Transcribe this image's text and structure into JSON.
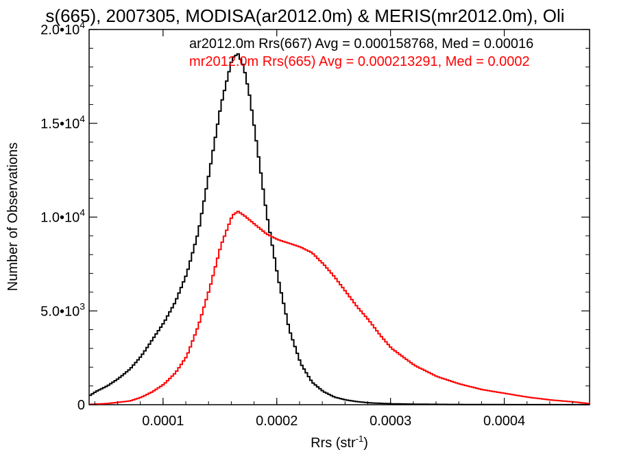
{
  "chart_data": {
    "type": "line",
    "title": "s(665), 2007305, MODISA(ar2012.0m) & MERIS(mr2012.0m), Oli",
    "xlabel": "Rrs (str",
    "xlabel_sup": "-1",
    "xlabel_end": ")",
    "ylabel": "Number of Observations",
    "xlim": [
      3.5e-05,
      0.000475
    ],
    "ylim": [
      0,
      20000
    ],
    "x_ticks": [
      {
        "value": 0.0001,
        "label": "0.0001"
      },
      {
        "value": 0.0002,
        "label": "0.0002"
      },
      {
        "value": 0.0003,
        "label": "0.0003"
      },
      {
        "value": 0.0004,
        "label": "0.0004"
      }
    ],
    "y_ticks": [
      {
        "value": 0,
        "mant": "0",
        "exp": ""
      },
      {
        "value": 5000,
        "mant": "5.0•10",
        "exp": "3"
      },
      {
        "value": 10000,
        "mant": "1.0•10",
        "exp": "4"
      },
      {
        "value": 15000,
        "mant": "1.5•10",
        "exp": "4"
      },
      {
        "value": 20000,
        "mant": "2.0•10",
        "exp": "4"
      }
    ],
    "grid": false,
    "series": [
      {
        "name": "ar2012.0m Rrs(667) Avg = 0.000158768, Med = 0.00016",
        "color": "#000000",
        "x": [
          3.5e-05,
          4e-05,
          5e-05,
          6e-05,
          7e-05,
          8e-05,
          9e-05,
          0.0001,
          0.00011,
          0.00012,
          0.00013,
          0.00014,
          0.00015,
          0.00016,
          0.000165,
          0.00017,
          0.000175,
          0.00018,
          0.00019,
          0.0002,
          0.00021,
          0.00022,
          0.00023,
          0.00024,
          0.00025,
          0.00026,
          0.00027,
          0.00028,
          0.0003,
          0.00032,
          0.00035,
          0.0004,
          0.00045,
          0.000475
        ],
        "values": [
          500,
          700,
          1000,
          1400,
          1900,
          2600,
          3500,
          4400,
          5500,
          7000,
          9200,
          12500,
          16000,
          18500,
          18700,
          18000,
          16500,
          14500,
          10200,
          6800,
          4000,
          2200,
          1200,
          700,
          400,
          250,
          160,
          100,
          50,
          30,
          15,
          5,
          3,
          2
        ]
      },
      {
        "name": "mr2012.0m Rrs(665) Avg = 0.000213291, Med = 0.0002",
        "color": "#ff0000",
        "x": [
          3.5e-05,
          5e-05,
          7e-05,
          8e-05,
          9e-05,
          0.0001,
          0.00011,
          0.00012,
          0.00013,
          0.00014,
          0.00015,
          0.00016,
          0.000165,
          0.00017,
          0.00018,
          0.00019,
          0.0002,
          0.00021,
          0.00022,
          0.00023,
          0.00024,
          0.00025,
          0.00026,
          0.00027,
          0.00028,
          0.00029,
          0.0003,
          0.00032,
          0.00034,
          0.00036,
          0.00038,
          0.0004,
          0.00042,
          0.00044,
          0.00046,
          0.000475
        ],
        "values": [
          20,
          60,
          200,
          400,
          700,
          1100,
          1700,
          2600,
          4200,
          6200,
          8500,
          10100,
          10300,
          10100,
          9600,
          9100,
          8800,
          8600,
          8400,
          8100,
          7500,
          6800,
          6000,
          5200,
          4500,
          3700,
          3000,
          2100,
          1500,
          1100,
          800,
          600,
          400,
          250,
          150,
          50
        ]
      }
    ],
    "legend": "top-right"
  }
}
